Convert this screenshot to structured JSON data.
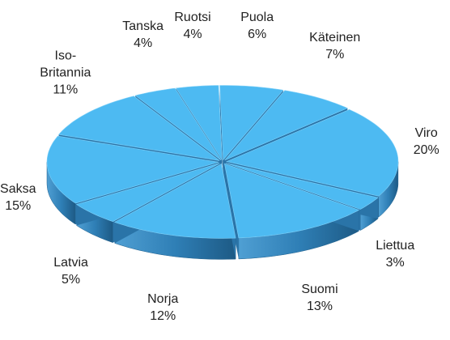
{
  "chart_data": {
    "type": "pie3d",
    "categories": [
      "Puola",
      "Käteinen",
      "Viro",
      "Liettua",
      "Suomi",
      "Norja",
      "Latvia",
      "Saksa",
      "Iso-Britannia",
      "Tanska",
      "Ruotsi"
    ],
    "values": [
      6,
      7,
      20,
      3,
      13,
      12,
      5,
      15,
      11,
      4,
      4
    ],
    "value_labels": [
      "6%",
      "7%",
      "20%",
      "3%",
      "13%",
      "12%",
      "5%",
      "15%",
      "11%",
      "4%",
      "4%"
    ],
    "color": "#4dbaf2"
  }
}
